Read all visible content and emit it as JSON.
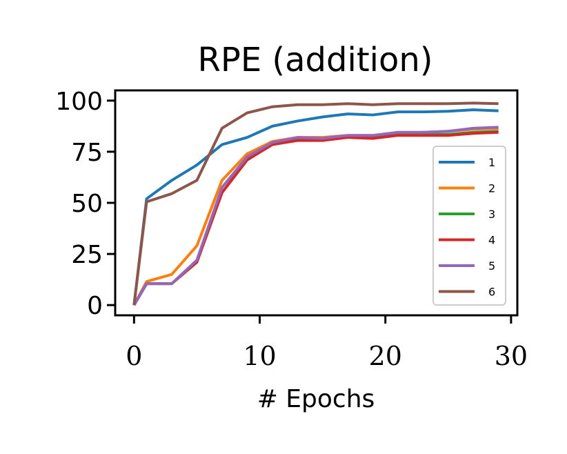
{
  "chart_data": {
    "type": "line",
    "title": "RPE (addition)",
    "xlabel": "# Epochs",
    "ylabel": "",
    "xlim": [
      -1.5,
      30.5
    ],
    "ylim": [
      -5,
      105
    ],
    "xticks": [
      0,
      10,
      20,
      30
    ],
    "yticks": [
      0,
      25,
      50,
      75,
      100
    ],
    "xtick_labels": [
      "0",
      "10",
      "20",
      "30"
    ],
    "ytick_labels": [
      "0",
      "25",
      "50",
      "75",
      "100"
    ],
    "x": [
      0,
      1,
      3,
      5,
      7,
      9,
      11,
      13,
      15,
      17,
      19,
      21,
      23,
      25,
      27,
      29
    ],
    "legend_position": "lower-right",
    "series": [
      {
        "name": "1",
        "color": "#1f77b4",
        "values": [
          0,
          52,
          61,
          68.5,
          78.5,
          82,
          87.5,
          90,
          92,
          93.5,
          93,
          94.5,
          94.5,
          94.8,
          95.5,
          95
        ]
      },
      {
        "name": "2",
        "color": "#ff7f0e",
        "values": [
          0,
          11.5,
          15,
          29,
          61,
          74,
          80,
          82,
          82,
          83,
          83,
          84,
          84.5,
          85,
          86,
          86.5
        ]
      },
      {
        "name": "3",
        "color": "#2ca02c",
        "values": [
          0,
          10.5,
          10.5,
          21,
          55,
          71,
          78.5,
          81,
          81,
          82.5,
          82,
          83.5,
          83.5,
          83.5,
          84.5,
          85
        ]
      },
      {
        "name": "4",
        "color": "#d62728",
        "values": [
          0,
          10.5,
          10.5,
          21,
          55,
          71,
          78.5,
          80.5,
          80.5,
          82,
          81.5,
          83,
          83,
          83,
          84,
          84.5
        ]
      },
      {
        "name": "5",
        "color": "#9467bd",
        "values": [
          0,
          10.5,
          10.5,
          22,
          57.5,
          72.5,
          79.5,
          82,
          81.5,
          83,
          83,
          84.5,
          84.5,
          85,
          86.5,
          87
        ]
      },
      {
        "name": "6",
        "color": "#8c564b",
        "values": [
          0,
          50.5,
          54.5,
          61,
          86.5,
          94,
          97,
          98,
          98,
          98.5,
          98,
          98.5,
          98.5,
          98.5,
          98.8,
          98.5
        ]
      }
    ]
  }
}
